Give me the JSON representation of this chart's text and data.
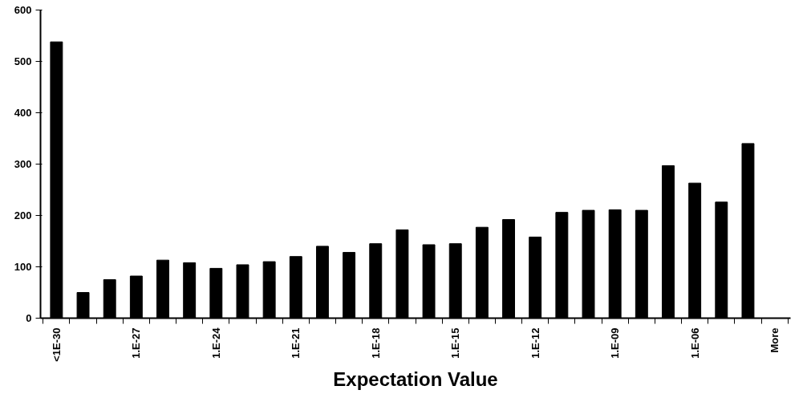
{
  "chart_data": {
    "type": "bar",
    "xlabel": "Expectation Value",
    "categories": [
      "<1E-30",
      null,
      null,
      "1.E-27",
      null,
      null,
      "1.E-24",
      null,
      null,
      "1.E-21",
      null,
      null,
      "1.E-18",
      null,
      null,
      "1.E-15",
      null,
      null,
      "1.E-12",
      null,
      null,
      "1.E-09",
      null,
      null,
      "1.E-06",
      null,
      null,
      "More"
    ],
    "values": [
      538,
      50,
      75,
      82,
      113,
      108,
      97,
      104,
      110,
      120,
      140,
      128,
      145,
      172,
      143,
      145,
      177,
      192,
      158,
      206,
      210,
      211,
      210,
      297,
      263,
      226,
      340,
      0
    ],
    "color": "#000000",
    "ylim": [
      0,
      600
    ],
    "yticks": [
      0,
      100,
      200,
      300,
      400,
      500,
      600
    ],
    "grid": false
  }
}
